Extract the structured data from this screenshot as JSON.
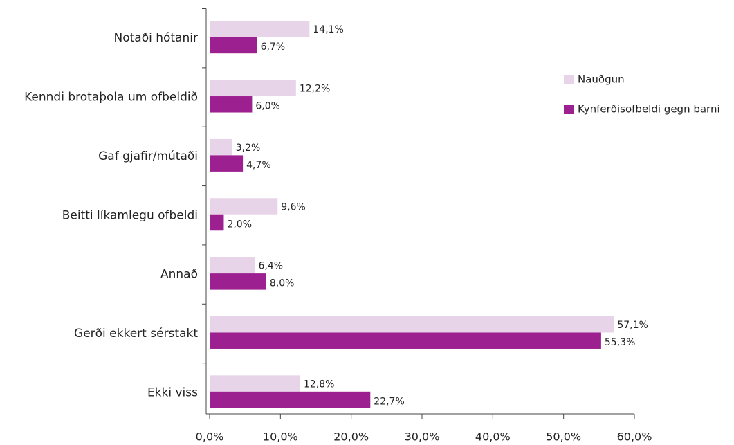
{
  "chart_data": {
    "type": "barh",
    "categories": [
      "Notaði hótanir",
      "Kenndi brotaþola um ofbeldið",
      "Gaf gjafir/mútaði",
      "Beitti líkamlegu ofbeldi",
      "Annað",
      "Gerði ekkert sérstakt",
      "Ekki viss"
    ],
    "series": [
      {
        "name": "Nauðgun",
        "color": "#e8d4e8",
        "values": [
          14.1,
          12.2,
          3.2,
          9.6,
          6.4,
          57.1,
          12.8
        ],
        "value_labels": [
          "14,1%",
          "12,2%",
          "3,2%",
          "9,6%",
          "6,4%",
          "57,1%",
          "12,8%"
        ]
      },
      {
        "name": "Kynferðisofbeldi gegn barni",
        "color": "#9c208f",
        "values": [
          6.7,
          6.0,
          4.7,
          2.0,
          8.0,
          55.3,
          22.7
        ],
        "value_labels": [
          "6,7%",
          "6,0%",
          "4,7%",
          "2,0%",
          "8,0%",
          "55,3%",
          "22,7%"
        ]
      }
    ],
    "xlim": [
      0,
      60
    ],
    "xticks": [
      {
        "value": 0,
        "label": "0,0%"
      },
      {
        "value": 10,
        "label": "10,0%"
      },
      {
        "value": 20,
        "label": "20,0%"
      },
      {
        "value": 30,
        "label": "30,0%"
      },
      {
        "value": 40,
        "label": "40,0%"
      },
      {
        "value": 50,
        "label": "50,0%"
      },
      {
        "value": 60,
        "label": "60,0%"
      }
    ],
    "legend": "right"
  }
}
